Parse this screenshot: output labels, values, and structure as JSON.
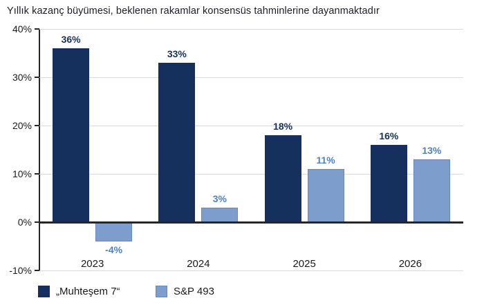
{
  "chart_data": {
    "type": "bar",
    "title": "Yıllık kazanç büyümesi, beklenen rakamlar konsensüs tahminlerine dayanmaktadır",
    "categories": [
      "2023",
      "2024",
      "2025",
      "2026"
    ],
    "series": [
      {
        "name": "„Muhteşem 7“",
        "color": "#16305e",
        "label_color": "#16305e",
        "values": [
          36,
          33,
          18,
          16
        ],
        "labels": [
          "36%",
          "33%",
          "18%",
          "16%"
        ]
      },
      {
        "name": "S&P 493",
        "color": "#7d9ecd",
        "border_color": "#6289c0",
        "label_color": "#4f80c0",
        "values": [
          -4,
          3,
          11,
          13
        ],
        "labels": [
          "-4%",
          "3%",
          "11%",
          "13%"
        ]
      }
    ],
    "axis": {
      "ymin": -10,
      "ymax": 40,
      "ticks": [
        {
          "v": 40,
          "label": "40%"
        },
        {
          "v": 30,
          "label": "30%"
        },
        {
          "v": 20,
          "label": "20%"
        },
        {
          "v": 10,
          "label": "10%"
        },
        {
          "v": 0,
          "label": "0%"
        },
        {
          "v": -10,
          "label": "-10%"
        }
      ],
      "grid": true,
      "grid_color": "#d9d9d9",
      "zero_line_color": "#262626",
      "axis_color": "#262626",
      "tick_label_color": "#1a1a1a"
    },
    "legend_position": "bottom",
    "background": "#ffffff"
  }
}
